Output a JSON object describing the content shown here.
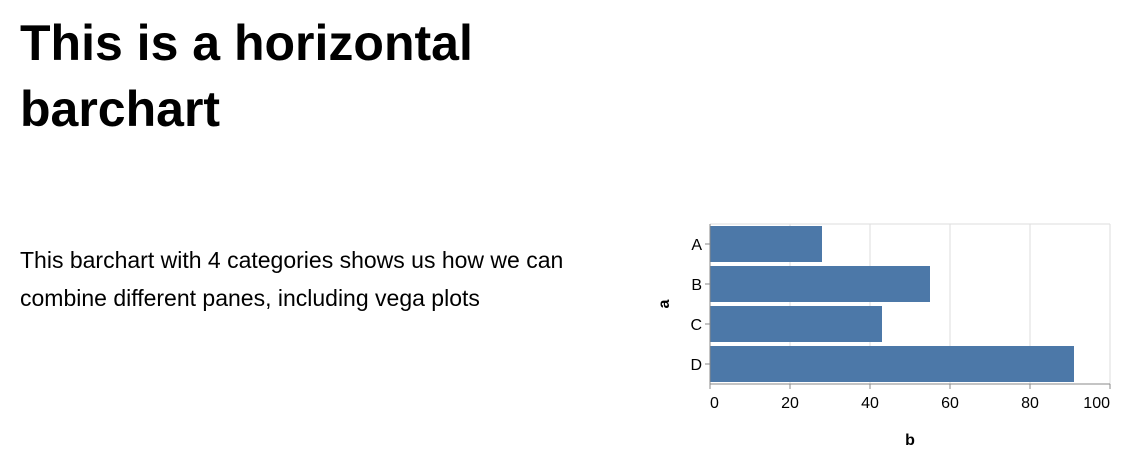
{
  "heading": "This is a horizontal barchart",
  "description": "This barchart with 4 categories shows us how we can combine different panes, including vega plots",
  "chart_data": {
    "type": "bar",
    "orientation": "horizontal",
    "categories": [
      "A",
      "B",
      "C",
      "D"
    ],
    "values": [
      28,
      55,
      43,
      91
    ],
    "xlabel": "b",
    "ylabel": "a",
    "xlim": [
      0,
      100
    ],
    "xticks": [
      0,
      20,
      40,
      60,
      80,
      100
    ],
    "grid": true,
    "bar_color": "#4c78a8"
  }
}
